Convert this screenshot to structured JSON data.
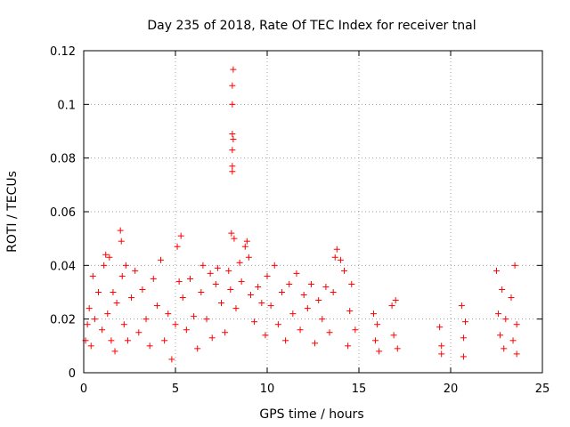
{
  "chart_data": {
    "type": "scatter",
    "title": "Day 235 of 2018, Rate Of TEC Index for receiver tnal",
    "xlabel": "GPS time / hours",
    "ylabel": "ROTI / TECUs",
    "xlim": [
      0,
      25
    ],
    "ylim": [
      0,
      0.12
    ],
    "xticks": [
      0,
      5,
      10,
      15,
      20,
      25
    ],
    "xtick_labels": [
      "0",
      "5",
      "10",
      "15",
      "20",
      "25"
    ],
    "yticks": [
      0,
      0.02,
      0.04,
      0.06,
      0.08,
      0.1,
      0.12
    ],
    "ytick_labels": [
      "0",
      "0.02",
      "0.04",
      "0.06",
      "0.08",
      "0.1",
      "0.12"
    ],
    "grid": true,
    "marker": "plus",
    "color": "#ff0000",
    "series": [
      {
        "name": "ROTI",
        "points": [
          [
            0.1,
            0.012
          ],
          [
            0.2,
            0.018
          ],
          [
            0.3,
            0.024
          ],
          [
            0.4,
            0.01
          ],
          [
            0.5,
            0.036
          ],
          [
            0.6,
            0.02
          ],
          [
            0.8,
            0.03
          ],
          [
            1.0,
            0.016
          ],
          [
            1.1,
            0.04
          ],
          [
            1.2,
            0.044
          ],
          [
            1.3,
            0.022
          ],
          [
            1.4,
            0.043
          ],
          [
            1.5,
            0.012
          ],
          [
            1.6,
            0.03
          ],
          [
            1.7,
            0.008
          ],
          [
            1.8,
            0.026
          ],
          [
            2.0,
            0.053
          ],
          [
            2.05,
            0.049
          ],
          [
            2.1,
            0.036
          ],
          [
            2.2,
            0.018
          ],
          [
            2.3,
            0.04
          ],
          [
            2.4,
            0.012
          ],
          [
            2.6,
            0.028
          ],
          [
            2.8,
            0.038
          ],
          [
            3.0,
            0.015
          ],
          [
            3.2,
            0.031
          ],
          [
            3.4,
            0.02
          ],
          [
            3.6,
            0.01
          ],
          [
            3.8,
            0.035
          ],
          [
            4.0,
            0.025
          ],
          [
            4.2,
            0.042
          ],
          [
            4.4,
            0.012
          ],
          [
            4.6,
            0.022
          ],
          [
            4.8,
            0.005
          ],
          [
            5.0,
            0.018
          ],
          [
            5.1,
            0.047
          ],
          [
            5.2,
            0.034
          ],
          [
            5.3,
            0.051
          ],
          [
            5.4,
            0.028
          ],
          [
            5.6,
            0.016
          ],
          [
            5.8,
            0.035
          ],
          [
            6.0,
            0.021
          ],
          [
            6.2,
            0.009
          ],
          [
            6.4,
            0.03
          ],
          [
            6.5,
            0.04
          ],
          [
            6.7,
            0.02
          ],
          [
            6.9,
            0.037
          ],
          [
            7.0,
            0.013
          ],
          [
            7.2,
            0.033
          ],
          [
            7.3,
            0.039
          ],
          [
            7.5,
            0.026
          ],
          [
            7.7,
            0.015
          ],
          [
            7.9,
            0.038
          ],
          [
            8.0,
            0.031
          ],
          [
            8.05,
            0.052
          ],
          [
            8.1,
            0.077
          ],
          [
            8.1,
            0.075
          ],
          [
            8.1,
            0.083
          ],
          [
            8.15,
            0.087
          ],
          [
            8.1,
            0.089
          ],
          [
            8.1,
            0.1
          ],
          [
            8.1,
            0.107
          ],
          [
            8.15,
            0.113
          ],
          [
            8.2,
            0.05
          ],
          [
            8.3,
            0.024
          ],
          [
            8.5,
            0.041
          ],
          [
            8.6,
            0.034
          ],
          [
            8.8,
            0.047
          ],
          [
            8.9,
            0.049
          ],
          [
            9.0,
            0.043
          ],
          [
            9.1,
            0.029
          ],
          [
            9.3,
            0.019
          ],
          [
            9.5,
            0.032
          ],
          [
            9.7,
            0.026
          ],
          [
            9.9,
            0.014
          ],
          [
            10.0,
            0.036
          ],
          [
            10.2,
            0.025
          ],
          [
            10.4,
            0.04
          ],
          [
            10.6,
            0.018
          ],
          [
            10.8,
            0.03
          ],
          [
            11.0,
            0.012
          ],
          [
            11.2,
            0.033
          ],
          [
            11.4,
            0.022
          ],
          [
            11.6,
            0.037
          ],
          [
            11.8,
            0.016
          ],
          [
            12.0,
            0.029
          ],
          [
            12.2,
            0.024
          ],
          [
            12.4,
            0.033
          ],
          [
            12.6,
            0.011
          ],
          [
            12.8,
            0.027
          ],
          [
            13.0,
            0.02
          ],
          [
            13.2,
            0.032
          ],
          [
            13.4,
            0.015
          ],
          [
            13.6,
            0.03
          ],
          [
            13.7,
            0.043
          ],
          [
            13.8,
            0.046
          ],
          [
            14.0,
            0.042
          ],
          [
            14.2,
            0.038
          ],
          [
            14.4,
            0.01
          ],
          [
            14.5,
            0.023
          ],
          [
            14.6,
            0.033
          ],
          [
            14.8,
            0.016
          ],
          [
            15.8,
            0.022
          ],
          [
            15.9,
            0.012
          ],
          [
            16.0,
            0.018
          ],
          [
            16.1,
            0.008
          ],
          [
            16.8,
            0.025
          ],
          [
            16.9,
            0.014
          ],
          [
            17.0,
            0.027
          ],
          [
            17.1,
            0.009
          ],
          [
            19.4,
            0.017
          ],
          [
            19.5,
            0.01
          ],
          [
            19.5,
            0.007
          ],
          [
            20.6,
            0.025
          ],
          [
            20.7,
            0.013
          ],
          [
            20.7,
            0.006
          ],
          [
            20.8,
            0.019
          ],
          [
            22.5,
            0.038
          ],
          [
            22.6,
            0.022
          ],
          [
            22.7,
            0.014
          ],
          [
            22.8,
            0.031
          ],
          [
            22.9,
            0.009
          ],
          [
            23.0,
            0.02
          ],
          [
            23.3,
            0.028
          ],
          [
            23.4,
            0.012
          ],
          [
            23.5,
            0.04
          ],
          [
            23.6,
            0.018
          ],
          [
            23.6,
            0.007
          ]
        ]
      }
    ]
  }
}
